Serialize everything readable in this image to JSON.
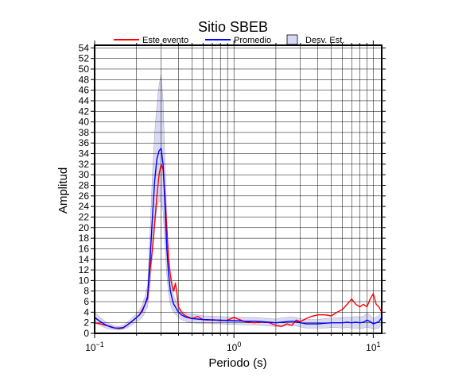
{
  "chart_data": {
    "type": "line",
    "title": "Sitio SBEB",
    "xlabel": "Periodo (s)",
    "ylabel": "Amplitud",
    "xscale": "log",
    "xlim": [
      0.1,
      11.5
    ],
    "ylim": [
      0,
      54.5
    ],
    "x_tick_labels": [
      {
        "value": 0.1,
        "base": "10",
        "exp": "−1"
      },
      {
        "value": 1,
        "base": "10",
        "exp": "0"
      },
      {
        "value": 10,
        "base": "10",
        "exp": "1"
      }
    ],
    "y_ticks": [
      0,
      2,
      4,
      6,
      8,
      10,
      12,
      14,
      16,
      18,
      20,
      22,
      24,
      26,
      28,
      30,
      32,
      34,
      36,
      38,
      40,
      42,
      44,
      46,
      48,
      50,
      52,
      54
    ],
    "grid": true,
    "legend_position": "top",
    "colors": {
      "event": "#ff0000",
      "mean": "#0000ff",
      "std_fill": "#d8d8f4",
      "std_edge": "#8a8ab0",
      "grid": "#000000"
    },
    "series": [
      {
        "name": "Este evento",
        "color": "#ff0000",
        "x": [
          0.1,
          0.11,
          0.12,
          0.13,
          0.14,
          0.15,
          0.16,
          0.17,
          0.18,
          0.19,
          0.2,
          0.21,
          0.22,
          0.23,
          0.24,
          0.25,
          0.26,
          0.27,
          0.28,
          0.29,
          0.3,
          0.31,
          0.32,
          0.33,
          0.34,
          0.35,
          0.36,
          0.37,
          0.38,
          0.39,
          0.4,
          0.42,
          0.44,
          0.46,
          0.48,
          0.5,
          0.55,
          0.6,
          0.65,
          0.7,
          0.8,
          0.9,
          1.0,
          1.2,
          1.4,
          1.6,
          1.8,
          2.0,
          2.2,
          2.4,
          2.6,
          2.8,
          3.0,
          3.3,
          3.6,
          4.0,
          4.5,
          5.0,
          5.5,
          6.0,
          6.5,
          7.0,
          7.5,
          8.0,
          8.5,
          9.0,
          9.5,
          10.0,
          10.5,
          11.0,
          11.5
        ],
        "y": [
          2.0,
          1.8,
          1.5,
          1.3,
          1.0,
          0.9,
          1.0,
          1.5,
          2.0,
          2.5,
          3.0,
          3.5,
          4.5,
          5.5,
          6.5,
          12.0,
          16.0,
          21.0,
          26.0,
          30.0,
          32.0,
          31.0,
          26.0,
          20.0,
          14.0,
          11.0,
          9.0,
          8.0,
          9.5,
          7.5,
          5.0,
          4.0,
          3.5,
          3.2,
          3.0,
          2.8,
          3.2,
          2.6,
          2.5,
          2.6,
          2.4,
          2.5,
          3.0,
          2.2,
          2.0,
          2.2,
          2.0,
          1.5,
          1.3,
          1.8,
          1.5,
          2.5,
          2.2,
          2.8,
          3.2,
          3.5,
          3.5,
          3.3,
          4.0,
          4.5,
          5.5,
          6.5,
          5.5,
          5.0,
          5.5,
          5.0,
          6.5,
          7.5,
          5.5,
          5.0,
          4.0
        ]
      },
      {
        "name": "Promedio",
        "color": "#0000ff",
        "x": [
          0.1,
          0.11,
          0.12,
          0.13,
          0.14,
          0.15,
          0.16,
          0.17,
          0.18,
          0.19,
          0.2,
          0.21,
          0.22,
          0.23,
          0.24,
          0.25,
          0.26,
          0.27,
          0.28,
          0.29,
          0.3,
          0.31,
          0.32,
          0.33,
          0.34,
          0.35,
          0.36,
          0.37,
          0.38,
          0.39,
          0.4,
          0.42,
          0.44,
          0.46,
          0.48,
          0.5,
          0.55,
          0.6,
          0.65,
          0.7,
          0.8,
          0.9,
          1.0,
          1.2,
          1.4,
          1.6,
          1.8,
          2.0,
          2.2,
          2.4,
          2.6,
          2.8,
          3.0,
          3.3,
          3.6,
          4.0,
          4.5,
          5.0,
          5.5,
          6.0,
          6.5,
          7.0,
          7.5,
          8.0,
          8.5,
          9.0,
          9.5,
          10.0,
          10.5,
          11.0,
          11.5
        ],
        "y": [
          3.0,
          2.2,
          1.6,
          1.2,
          1.0,
          1.0,
          1.1,
          1.5,
          2.0,
          2.5,
          3.0,
          3.5,
          4.2,
          5.5,
          7.0,
          14.0,
          22.0,
          29.0,
          33.0,
          34.5,
          35.0,
          32.0,
          24.0,
          16.0,
          11.0,
          8.0,
          6.5,
          5.5,
          5.0,
          4.5,
          4.0,
          3.5,
          3.2,
          3.0,
          2.9,
          2.8,
          2.7,
          2.6,
          2.6,
          2.5,
          2.5,
          2.4,
          2.4,
          2.3,
          2.3,
          2.2,
          2.1,
          2.0,
          2.1,
          2.2,
          2.3,
          2.2,
          2.0,
          1.8,
          1.8,
          1.8,
          1.9,
          2.0,
          2.0,
          2.0,
          2.1,
          2.0,
          2.1,
          2.0,
          2.1,
          2.5,
          2.2,
          1.8,
          2.0,
          2.2,
          3.0
        ]
      }
    ],
    "std_band": {
      "name": "Desv. Est.",
      "x": [
        0.1,
        0.11,
        0.12,
        0.13,
        0.14,
        0.15,
        0.16,
        0.17,
        0.18,
        0.19,
        0.2,
        0.21,
        0.22,
        0.23,
        0.24,
        0.25,
        0.26,
        0.27,
        0.28,
        0.29,
        0.3,
        0.31,
        0.32,
        0.33,
        0.34,
        0.35,
        0.36,
        0.37,
        0.38,
        0.39,
        0.4,
        0.42,
        0.44,
        0.46,
        0.48,
        0.5,
        0.55,
        0.6,
        0.65,
        0.7,
        0.8,
        0.9,
        1.0,
        1.2,
        1.4,
        1.6,
        1.8,
        2.0,
        2.2,
        2.4,
        2.6,
        2.8,
        3.0,
        3.3,
        3.6,
        4.0,
        4.5,
        5.0,
        5.5,
        6.0,
        6.5,
        7.0,
        7.5,
        8.0,
        8.5,
        9.0,
        9.5,
        10.0,
        10.5,
        11.0,
        11.5
      ],
      "lower": [
        2.0,
        1.5,
        1.0,
        0.8,
        0.7,
        0.7,
        0.8,
        1.0,
        1.4,
        1.8,
        2.2,
        2.5,
        3.0,
        4.0,
        5.0,
        9.0,
        15.0,
        20.0,
        24.0,
        25.0,
        25.0,
        23.0,
        17.0,
        11.0,
        7.5,
        5.5,
        4.5,
        4.0,
        3.6,
        3.3,
        3.0,
        2.6,
        2.4,
        2.2,
        2.1,
        2.0,
        1.9,
        1.9,
        1.9,
        1.8,
        1.8,
        1.7,
        1.7,
        1.6,
        1.6,
        1.5,
        1.4,
        1.3,
        1.3,
        1.4,
        1.5,
        1.4,
        1.2,
        1.0,
        1.0,
        1.0,
        1.0,
        1.1,
        1.1,
        1.0,
        1.1,
        1.0,
        1.0,
        0.9,
        1.0,
        1.2,
        1.0,
        0.8,
        0.9,
        1.0,
        1.8
      ],
      "upper": [
        4.0,
        3.0,
        2.2,
        1.7,
        1.4,
        1.3,
        1.5,
        2.0,
        2.6,
        3.2,
        3.8,
        4.5,
        5.4,
        7.0,
        9.0,
        19.0,
        30.0,
        38.0,
        43.0,
        47.0,
        49.0,
        44.0,
        32.0,
        21.0,
        14.5,
        10.5,
        8.5,
        7.0,
        6.4,
        5.7,
        5.0,
        4.4,
        4.0,
        3.8,
        3.7,
        3.6,
        3.5,
        3.3,
        3.3,
        3.2,
        3.2,
        3.1,
        3.1,
        3.0,
        3.0,
        2.9,
        2.8,
        2.7,
        2.9,
        3.0,
        3.1,
        3.0,
        2.8,
        2.6,
        2.6,
        2.6,
        2.8,
        2.9,
        2.9,
        3.0,
        3.1,
        3.0,
        3.2,
        3.1,
        3.2,
        3.8,
        3.4,
        2.8,
        3.1,
        3.4,
        4.2
      ]
    },
    "legend": [
      {
        "key": "event",
        "label": "Este evento",
        "kind": "line",
        "color": "#ff0000"
      },
      {
        "key": "mean",
        "label": "Promedio",
        "kind": "line",
        "color": "#0000ff"
      },
      {
        "key": "std",
        "label": "Desv. Est.",
        "kind": "box",
        "color": "#d8d8f4"
      }
    ]
  }
}
